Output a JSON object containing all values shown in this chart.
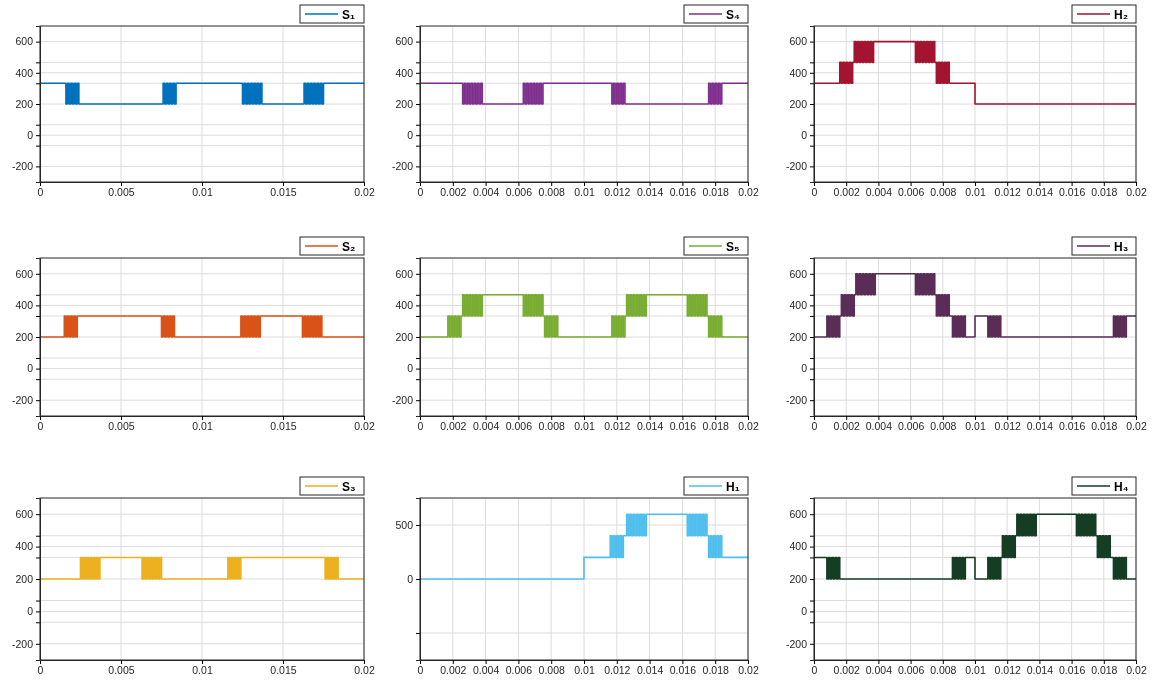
{
  "chart_data": [
    {
      "type": "step",
      "xlim": [
        0,
        0.02
      ],
      "xticks": [
        0,
        0.005,
        0.01,
        0.015,
        0.02
      ],
      "ylim": [
        -300,
        700
      ],
      "yticks": [
        -200,
        {
          "value": -67,
          "label": null
        },
        0,
        {
          "value": 67,
          "label": null
        },
        200,
        {
          "value": 333,
          "label": null
        },
        400,
        {
          "value": 467,
          "label": null
        },
        600
      ],
      "grid": true,
      "legend": "top right",
      "series": [
        {
          "name": "S₁",
          "color": "#0072bd",
          "x": [
            0,
            0.0016,
            0.0017,
            0.0018,
            0.0019,
            0.002,
            0.0021,
            0.0022,
            0.0023,
            0.0024,
            0.0076,
            0.0077,
            0.0078,
            0.0079,
            0.008,
            0.0081,
            0.0082,
            0.0083,
            0.0084,
            0.0125,
            0.0126,
            0.0127,
            0.0128,
            0.0129,
            0.013,
            0.0131,
            0.0132,
            0.0133,
            0.0134,
            0.0135,
            0.0136,
            0.0137,
            0.0163,
            0.0164,
            0.0165,
            0.0166,
            0.0167,
            0.0168,
            0.0169,
            0.017,
            0.0171,
            0.0172,
            0.0173,
            0.0174,
            0.0175,
            0.02
          ],
          "values": [
            333,
            200,
            333,
            200,
            333,
            200,
            333,
            200,
            333,
            200,
            333,
            200,
            333,
            200,
            333,
            200,
            333,
            200,
            333,
            200,
            333,
            200,
            333,
            200,
            333,
            200,
            333,
            200,
            333,
            200,
            333,
            200,
            333,
            200,
            333,
            200,
            333,
            200,
            333,
            200,
            333,
            200,
            333,
            200,
            333,
            333
          ]
        }
      ]
    },
    {
      "type": "step",
      "xlim": [
        0,
        0.02
      ],
      "xticks": [
        0,
        0.002,
        0.004,
        0.006,
        0.008,
        0.01,
        0.012,
        0.014,
        0.016,
        0.018,
        0.02
      ],
      "ylim": [
        -300,
        700
      ],
      "yticks": [
        -200,
        {
          "value": -67,
          "label": null
        },
        0,
        {
          "value": 67,
          "label": null
        },
        200,
        {
          "value": 333,
          "label": null
        },
        400,
        {
          "value": 467,
          "label": null
        },
        600
      ],
      "grid": true,
      "legend": "top right",
      "series": [
        {
          "name": "S₄",
          "color": "#7e2f8e",
          "x": [
            0,
            0.0026,
            0.0027,
            0.0028,
            0.0029,
            0.003,
            0.0031,
            0.0032,
            0.0033,
            0.0034,
            0.0035,
            0.0036,
            0.0037,
            0.0038,
            0.0063,
            0.0064,
            0.0065,
            0.0066,
            0.0067,
            0.0068,
            0.0069,
            0.007,
            0.0071,
            0.0072,
            0.0073,
            0.0074,
            0.0075,
            0.0117,
            0.0118,
            0.0119,
            0.012,
            0.0121,
            0.0122,
            0.0123,
            0.0124,
            0.0125,
            0.0176,
            0.0177,
            0.0178,
            0.0179,
            0.018,
            0.0181,
            0.0182,
            0.0183,
            0.0184,
            0.02
          ],
          "values": [
            333,
            200,
            333,
            200,
            333,
            200,
            333,
            200,
            333,
            200,
            333,
            200,
            333,
            200,
            333,
            200,
            333,
            200,
            333,
            200,
            333,
            200,
            333,
            200,
            333,
            200,
            333,
            200,
            333,
            200,
            333,
            200,
            333,
            200,
            333,
            200,
            333,
            200,
            333,
            200,
            333,
            200,
            333,
            200,
            333,
            333
          ]
        }
      ]
    },
    {
      "type": "step",
      "xlim": [
        0,
        0.02
      ],
      "xticks": [
        0,
        0.002,
        0.004,
        0.006,
        0.008,
        0.01,
        0.012,
        0.014,
        0.016,
        0.018,
        0.02
      ],
      "ylim": [
        -300,
        700
      ],
      "yticks": [
        -200,
        {
          "value": -67,
          "label": null
        },
        0,
        {
          "value": 67,
          "label": null
        },
        200,
        {
          "value": 333,
          "label": null
        },
        400,
        {
          "value": 467,
          "label": null
        },
        600
      ],
      "grid": true,
      "legend": "top right",
      "series": [
        {
          "name": "H₂",
          "color": "#a2142f",
          "x": [
            0,
            0.0016,
            0.0017,
            0.0018,
            0.0019,
            0.002,
            0.0021,
            0.0022,
            0.0023,
            0.0024,
            0.0025,
            0.0026,
            0.0027,
            0.0028,
            0.0029,
            0.003,
            0.0031,
            0.0032,
            0.0033,
            0.0034,
            0.0035,
            0.0036,
            0.0037,
            0.0063,
            0.0064,
            0.0065,
            0.0066,
            0.0067,
            0.0068,
            0.0069,
            0.007,
            0.0071,
            0.0072,
            0.0073,
            0.0074,
            0.0075,
            0.0076,
            0.0077,
            0.0078,
            0.0079,
            0.008,
            0.0081,
            0.0082,
            0.0083,
            0.0084,
            0.01,
            0.02
          ],
          "values": [
            333,
            467,
            333,
            467,
            333,
            467,
            333,
            467,
            333,
            467,
            600,
            467,
            600,
            467,
            600,
            467,
            600,
            467,
            600,
            467,
            600,
            467,
            600,
            467,
            600,
            467,
            600,
            467,
            600,
            467,
            600,
            467,
            600,
            467,
            600,
            467,
            333,
            467,
            333,
            467,
            333,
            467,
            333,
            467,
            333,
            200,
            200
          ]
        }
      ]
    },
    {
      "type": "step",
      "xlim": [
        0,
        0.02
      ],
      "xticks": [
        0,
        0.005,
        0.01,
        0.015,
        0.02
      ],
      "ylim": [
        -300,
        700
      ],
      "yticks": [
        -200,
        {
          "value": -67,
          "label": null
        },
        0,
        {
          "value": 67,
          "label": null
        },
        200,
        {
          "value": 333,
          "label": null
        },
        400,
        {
          "value": 467,
          "label": null
        },
        600
      ],
      "grid": true,
      "legend": "top right",
      "series": [
        {
          "name": "S₂",
          "color": "#d95319",
          "x": [
            0,
            0.0015,
            0.0016,
            0.0017,
            0.0018,
            0.0019,
            0.002,
            0.0021,
            0.0022,
            0.0023,
            0.0075,
            0.0076,
            0.0077,
            0.0078,
            0.0079,
            0.008,
            0.0081,
            0.0082,
            0.0083,
            0.0124,
            0.0125,
            0.0126,
            0.0127,
            0.0128,
            0.0129,
            0.013,
            0.0131,
            0.0132,
            0.0133,
            0.0134,
            0.0135,
            0.0136,
            0.0162,
            0.0163,
            0.0164,
            0.0165,
            0.0166,
            0.0167,
            0.0168,
            0.0169,
            0.017,
            0.0171,
            0.0172,
            0.0173,
            0.0174,
            0.02
          ],
          "values": [
            200,
            333,
            200,
            333,
            200,
            333,
            200,
            333,
            200,
            333,
            200,
            333,
            200,
            333,
            200,
            333,
            200,
            333,
            200,
            333,
            200,
            333,
            200,
            333,
            200,
            333,
            200,
            333,
            200,
            333,
            200,
            333,
            200,
            333,
            200,
            333,
            200,
            333,
            200,
            333,
            200,
            333,
            200,
            333,
            200,
            200
          ]
        }
      ]
    },
    {
      "type": "step",
      "xlim": [
        0,
        0.02
      ],
      "xticks": [
        0,
        0.002,
        0.004,
        0.006,
        0.008,
        0.01,
        0.012,
        0.014,
        0.016,
        0.018,
        0.02
      ],
      "ylim": [
        -300,
        700
      ],
      "yticks": [
        -200,
        {
          "value": -67,
          "label": null
        },
        0,
        {
          "value": 67,
          "label": null
        },
        200,
        {
          "value": 333,
          "label": null
        },
        400,
        {
          "value": 467,
          "label": null
        },
        600
      ],
      "grid": true,
      "legend": "top right",
      "series": [
        {
          "name": "S₅",
          "color": "#77ac30",
          "x": [
            0,
            0.0017,
            0.0018,
            0.0019,
            0.002,
            0.0021,
            0.0022,
            0.0023,
            0.0024,
            0.0025,
            0.0026,
            0.0027,
            0.0028,
            0.0029,
            0.003,
            0.0031,
            0.0032,
            0.0033,
            0.0034,
            0.0035,
            0.0036,
            0.0037,
            0.0038,
            0.0063,
            0.0064,
            0.0065,
            0.0066,
            0.0067,
            0.0068,
            0.0069,
            0.007,
            0.0071,
            0.0072,
            0.0073,
            0.0074,
            0.0075,
            0.0076,
            0.0077,
            0.0078,
            0.0079,
            0.008,
            0.0081,
            0.0082,
            0.0083,
            0.0084,
            0.0117,
            0.0118,
            0.0119,
            0.012,
            0.0121,
            0.0122,
            0.0123,
            0.0124,
            0.0125,
            0.0126,
            0.0127,
            0.0128,
            0.0129,
            0.013,
            0.0131,
            0.0132,
            0.0133,
            0.0134,
            0.0135,
            0.0136,
            0.0137,
            0.0138,
            0.0163,
            0.0164,
            0.0165,
            0.0166,
            0.0167,
            0.0168,
            0.0169,
            0.017,
            0.0171,
            0.0172,
            0.0173,
            0.0174,
            0.0175,
            0.0176,
            0.0177,
            0.0178,
            0.0179,
            0.018,
            0.0181,
            0.0182,
            0.0183,
            0.0184,
            0.02
          ],
          "values": [
            200,
            333,
            200,
            333,
            200,
            333,
            200,
            333,
            200,
            333,
            467,
            333,
            467,
            333,
            467,
            333,
            467,
            333,
            467,
            333,
            467,
            333,
            467,
            333,
            467,
            333,
            467,
            333,
            467,
            333,
            467,
            333,
            467,
            333,
            467,
            333,
            200,
            333,
            200,
            333,
            200,
            333,
            200,
            333,
            200,
            333,
            200,
            333,
            200,
            333,
            200,
            333,
            200,
            333,
            467,
            333,
            467,
            333,
            467,
            333,
            467,
            333,
            467,
            333,
            467,
            333,
            467,
            333,
            467,
            333,
            467,
            333,
            467,
            333,
            467,
            333,
            467,
            333,
            467,
            333,
            200,
            333,
            200,
            333,
            200,
            333,
            200,
            333,
            200,
            200
          ]
        }
      ]
    },
    {
      "type": "step",
      "xlim": [
        0,
        0.02
      ],
      "xticks": [
        0,
        0.002,
        0.004,
        0.006,
        0.008,
        0.01,
        0.012,
        0.014,
        0.016,
        0.018,
        0.02
      ],
      "ylim": [
        -300,
        700
      ],
      "yticks": [
        -200,
        {
          "value": -67,
          "label": null
        },
        0,
        {
          "value": 67,
          "label": null
        },
        200,
        {
          "value": 333,
          "label": null
        },
        400,
        {
          "value": 467,
          "label": null
        },
        600
      ],
      "grid": true,
      "legend": "top right",
      "series": [
        {
          "name": "H₃",
          "color": "#5a2d56",
          "x": [
            0,
            0.0008,
            0.0009,
            0.001,
            0.0011,
            0.0012,
            0.0013,
            0.0014,
            0.0015,
            0.0016,
            0.0017,
            0.0018,
            0.0019,
            0.002,
            0.0021,
            0.0022,
            0.0023,
            0.0024,
            0.0025,
            0.0026,
            0.0027,
            0.0028,
            0.0029,
            0.003,
            0.0031,
            0.0032,
            0.0033,
            0.0034,
            0.0035,
            0.0036,
            0.0037,
            0.0038,
            0.0063,
            0.0064,
            0.0065,
            0.0066,
            0.0067,
            0.0068,
            0.0069,
            0.007,
            0.0071,
            0.0072,
            0.0073,
            0.0074,
            0.0075,
            0.0076,
            0.0077,
            0.0078,
            0.0079,
            0.008,
            0.0081,
            0.0082,
            0.0083,
            0.0084,
            0.0086,
            0.0087,
            0.0088,
            0.0089,
            0.009,
            0.0091,
            0.0092,
            0.0093,
            0.0094,
            0.01,
            0.0108,
            0.0109,
            0.011,
            0.0111,
            0.0112,
            0.0113,
            0.0114,
            0.0115,
            0.0116,
            0.0186,
            0.0187,
            0.0188,
            0.0189,
            0.019,
            0.0191,
            0.0192,
            0.0193,
            0.0194,
            0.02
          ],
          "values": [
            200,
            333,
            200,
            333,
            200,
            333,
            200,
            333,
            200,
            333,
            467,
            333,
            467,
            333,
            467,
            333,
            467,
            333,
            467,
            600,
            467,
            600,
            467,
            600,
            467,
            600,
            467,
            600,
            467,
            600,
            467,
            600,
            467,
            600,
            467,
            600,
            467,
            600,
            467,
            600,
            467,
            600,
            467,
            600,
            467,
            333,
            467,
            333,
            467,
            333,
            467,
            333,
            467,
            333,
            200,
            333,
            200,
            333,
            200,
            333,
            200,
            333,
            200,
            333,
            200,
            333,
            200,
            333,
            200,
            333,
            200,
            333,
            200,
            333,
            200,
            333,
            200,
            333,
            200,
            333,
            200,
            333,
            333
          ]
        }
      ]
    },
    {
      "type": "step",
      "xlim": [
        0,
        0.02
      ],
      "xticks": [
        0,
        0.005,
        0.01,
        0.015,
        0.02
      ],
      "ylim": [
        -300,
        700
      ],
      "yticks": [
        -200,
        {
          "value": -67,
          "label": null
        },
        0,
        {
          "value": 67,
          "label": null
        },
        200,
        {
          "value": 333,
          "label": null
        },
        400,
        {
          "value": 467,
          "label": null
        },
        600
      ],
      "grid": true,
      "legend": "top right",
      "series": [
        {
          "name": "S₃",
          "color": "#edb120",
          "x": [
            0,
            0.0025,
            0.0026,
            0.0027,
            0.0028,
            0.0029,
            0.003,
            0.0031,
            0.0032,
            0.0033,
            0.0034,
            0.0035,
            0.0036,
            0.0037,
            0.0063,
            0.0064,
            0.0065,
            0.0066,
            0.0067,
            0.0068,
            0.0069,
            0.007,
            0.0071,
            0.0072,
            0.0073,
            0.0074,
            0.0075,
            0.0116,
            0.0117,
            0.0118,
            0.0119,
            0.012,
            0.0121,
            0.0122,
            0.0123,
            0.0124,
            0.0176,
            0.0177,
            0.0178,
            0.0179,
            0.018,
            0.0181,
            0.0182,
            0.0183,
            0.0184,
            0.02
          ],
          "values": [
            200,
            333,
            200,
            333,
            200,
            333,
            200,
            333,
            200,
            333,
            200,
            333,
            200,
            333,
            200,
            333,
            200,
            333,
            200,
            333,
            200,
            333,
            200,
            333,
            200,
            333,
            200,
            333,
            200,
            333,
            200,
            333,
            200,
            333,
            200,
            333,
            200,
            333,
            200,
            333,
            200,
            333,
            200,
            333,
            200,
            200
          ]
        }
      ]
    },
    {
      "type": "step",
      "xlim": [
        0,
        0.02
      ],
      "xticks": [
        0,
        0.002,
        0.004,
        0.006,
        0.008,
        0.01,
        0.012,
        0.014,
        0.016,
        0.018,
        0.02
      ],
      "ylim": [
        -750,
        750
      ],
      "yticks": [
        {
          "value": -500,
          "label": null
        },
        0,
        500
      ],
      "grid": true,
      "legend": "top right",
      "series": [
        {
          "name": "H₁",
          "color": "#4dbeee",
          "x": [
            0,
            0.01,
            0.0116,
            0.0117,
            0.0118,
            0.0119,
            0.012,
            0.0121,
            0.0122,
            0.0123,
            0.0124,
            0.0126,
            0.0127,
            0.0128,
            0.0129,
            0.013,
            0.0131,
            0.0132,
            0.0133,
            0.0134,
            0.0135,
            0.0136,
            0.0137,
            0.0138,
            0.0163,
            0.0164,
            0.0165,
            0.0166,
            0.0167,
            0.0168,
            0.0169,
            0.017,
            0.0171,
            0.0172,
            0.0173,
            0.0174,
            0.0175,
            0.0176,
            0.0177,
            0.0178,
            0.0179,
            0.018,
            0.0181,
            0.0182,
            0.0183,
            0.0184,
            0.02
          ],
          "values": [
            0,
            200,
            400,
            200,
            400,
            200,
            400,
            200,
            400,
            200,
            400,
            600,
            400,
            600,
            400,
            600,
            400,
            600,
            400,
            600,
            400,
            600,
            400,
            600,
            400,
            600,
            400,
            600,
            400,
            600,
            400,
            600,
            400,
            600,
            400,
            600,
            400,
            200,
            400,
            200,
            400,
            200,
            400,
            200,
            400,
            200,
            200
          ]
        }
      ]
    },
    {
      "type": "step",
      "xlim": [
        0,
        0.02
      ],
      "xticks": [
        0,
        0.002,
        0.004,
        0.006,
        0.008,
        0.01,
        0.012,
        0.014,
        0.016,
        0.018,
        0.02
      ],
      "ylim": [
        -300,
        700
      ],
      "yticks": [
        -200,
        {
          "value": -67,
          "label": null
        },
        0,
        {
          "value": 67,
          "label": null
        },
        200,
        {
          "value": 333,
          "label": null
        },
        400,
        {
          "value": 467,
          "label": null
        },
        600
      ],
      "grid": true,
      "legend": "top right",
      "series": [
        {
          "name": "H₄",
          "color": "#143d24",
          "x": [
            0,
            0.0008,
            0.0009,
            0.001,
            0.0011,
            0.0012,
            0.0013,
            0.0014,
            0.0015,
            0.0016,
            0.0086,
            0.0087,
            0.0088,
            0.0089,
            0.009,
            0.0091,
            0.0092,
            0.0093,
            0.0094,
            0.01,
            0.0108,
            0.0109,
            0.011,
            0.0111,
            0.0112,
            0.0113,
            0.0114,
            0.0115,
            0.0116,
            0.0117,
            0.0118,
            0.0119,
            0.012,
            0.0121,
            0.0122,
            0.0123,
            0.0124,
            0.0125,
            0.0126,
            0.0127,
            0.0128,
            0.0129,
            0.013,
            0.0131,
            0.0132,
            0.0133,
            0.0134,
            0.0135,
            0.0136,
            0.0137,
            0.0138,
            0.0163,
            0.0164,
            0.0165,
            0.0166,
            0.0167,
            0.0168,
            0.0169,
            0.017,
            0.0171,
            0.0172,
            0.0173,
            0.0174,
            0.0175,
            0.0176,
            0.0177,
            0.0178,
            0.0179,
            0.018,
            0.0181,
            0.0182,
            0.0183,
            0.0184,
            0.0186,
            0.0187,
            0.0188,
            0.0189,
            0.019,
            0.0191,
            0.0192,
            0.0193,
            0.0194,
            0.02
          ],
          "values": [
            333,
            200,
            333,
            200,
            333,
            200,
            333,
            200,
            333,
            200,
            333,
            200,
            333,
            200,
            333,
            200,
            333,
            200,
            333,
            200,
            333,
            200,
            333,
            200,
            333,
            200,
            333,
            200,
            333,
            467,
            333,
            467,
            333,
            467,
            333,
            467,
            333,
            467,
            600,
            467,
            600,
            467,
            600,
            467,
            600,
            467,
            600,
            467,
            600,
            467,
            600,
            467,
            600,
            467,
            600,
            467,
            600,
            467,
            600,
            467,
            600,
            467,
            600,
            467,
            333,
            467,
            333,
            467,
            333,
            467,
            333,
            467,
            333,
            200,
            333,
            200,
            333,
            200,
            333,
            200,
            333,
            200,
            200
          ]
        }
      ]
    }
  ]
}
